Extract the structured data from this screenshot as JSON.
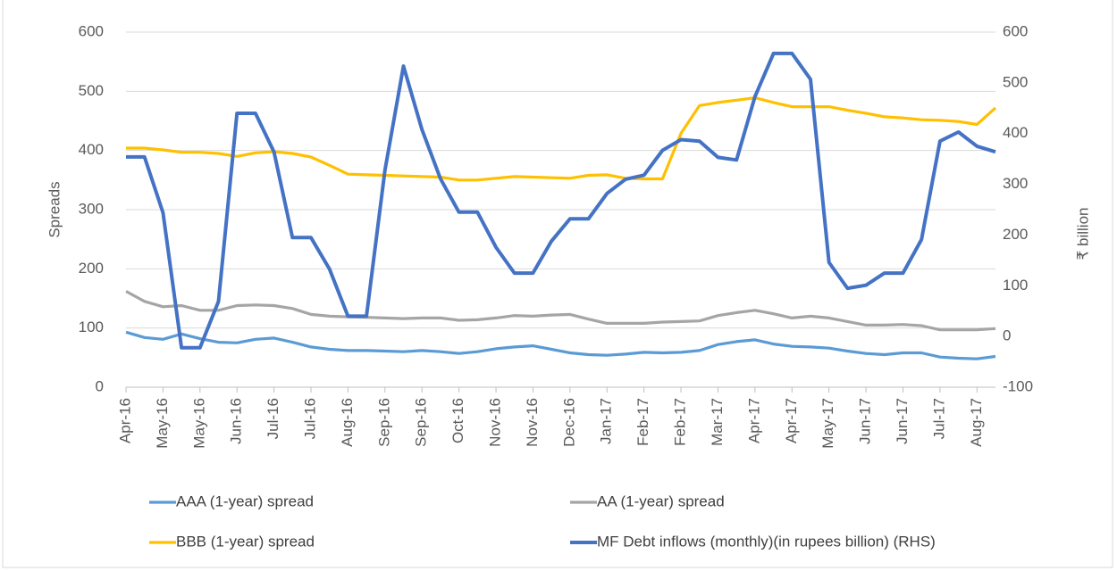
{
  "chart_data": {
    "type": "line",
    "y_label": "Spreads",
    "y2_label": "₹ billion",
    "categories": [
      "Apr-16",
      null,
      "May-16",
      null,
      "May-16",
      null,
      "Jun-16",
      null,
      "Jul-16",
      null,
      "Jul-16",
      null,
      "Aug-16",
      null,
      "Sep-16",
      null,
      "Sep-16",
      null,
      "Oct-16",
      null,
      "Nov-16",
      null,
      "Nov-16",
      null,
      "Dec-16",
      null,
      "Jan-17",
      null,
      "Feb-17",
      null,
      "Feb-17",
      null,
      "Mar-17",
      null,
      "Apr-17",
      null,
      "Apr-17",
      null,
      "May-17",
      null,
      "Jun-17",
      null,
      "Jun-17",
      null,
      "Jul-17",
      null,
      "Aug-17",
      null
    ],
    "series": [
      {
        "name": "AAA (1-year) spread",
        "color": "#5B9BD5",
        "values": [
          93,
          84,
          81,
          90,
          82,
          76,
          75,
          81,
          83,
          76,
          68,
          64,
          62,
          62,
          61,
          60,
          62,
          60,
          57,
          60,
          65,
          68,
          70,
          64,
          58,
          55,
          54,
          56,
          59,
          58,
          59,
          62,
          72,
          77,
          80,
          73,
          69,
          68,
          66,
          61,
          57,
          55,
          58,
          58,
          51,
          49,
          48,
          52
        ]
      },
      {
        "name": "AA (1-year) spread",
        "color": "#A5A5A5",
        "values": [
          162,
          145,
          136,
          138,
          130,
          130,
          138,
          139,
          138,
          133,
          123,
          120,
          119,
          118,
          117,
          116,
          117,
          117,
          113,
          114,
          117,
          121,
          120,
          122,
          123,
          115,
          108,
          108,
          108,
          110,
          111,
          112,
          121,
          126,
          130,
          124,
          117,
          120,
          117,
          111,
          105,
          105,
          106,
          104,
          97,
          97,
          97,
          99
        ]
      },
      {
        "name": "BBB (1-year) spread",
        "color": "#FFC000",
        "values": [
          404,
          404,
          401,
          397,
          397,
          395,
          390,
          396,
          398,
          395,
          389,
          375,
          360,
          359,
          358,
          357,
          356,
          355,
          350,
          350,
          353,
          356,
          355,
          354,
          353,
          358,
          359,
          353,
          352,
          352,
          429,
          476,
          481,
          485,
          489,
          481,
          474,
          474,
          474,
          468,
          463,
          457,
          455,
          452,
          451,
          449,
          444,
          472
        ]
      },
      {
        "name": "MF Debt inflows (monthly)(in rupees billion) (RHS)",
        "color": "#4472C4",
        "axis": "y2",
        "values": [
          354,
          354,
          244,
          -22,
          -22,
          69,
          440,
          440,
          364,
          195,
          195,
          133,
          40,
          40,
          328,
          533,
          408,
          311,
          245,
          245,
          176,
          125,
          125,
          188,
          232,
          232,
          282,
          310,
          318,
          367,
          388,
          385,
          353,
          348,
          473,
          558,
          558,
          507,
          146,
          95,
          101,
          125,
          125,
          191,
          385,
          403,
          375,
          364
        ]
      }
    ],
    "ylim": [
      0,
      600
    ],
    "yticks": [
      0,
      100,
      200,
      300,
      400,
      500,
      600
    ],
    "y2lim": [
      -100,
      600
    ],
    "y2ticks": [
      -100,
      0,
      100,
      200,
      300,
      400,
      500,
      600
    ],
    "grid": true,
    "legend": "bottom"
  }
}
